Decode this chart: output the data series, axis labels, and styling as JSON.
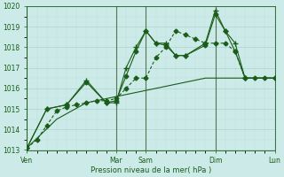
{
  "title": "Pression niveau de la mer( hPa )",
  "bg_color": "#cceae7",
  "grid_color_major": "#aad4d0",
  "grid_color_minor": "#c0e0dc",
  "line_color": "#1a5c1a",
  "vline_color": "#557755",
  "ylim": [
    1013,
    1020
  ],
  "yticks": [
    1013,
    1014,
    1015,
    1016,
    1017,
    1018,
    1019,
    1020
  ],
  "xtick_labels": [
    "Ven",
    "Mar",
    "Sam",
    "Dim",
    "Lun"
  ],
  "xtick_positions": [
    0,
    9,
    12,
    19,
    25
  ],
  "xlim": [
    0,
    25
  ],
  "vlines": [
    0,
    9,
    12,
    19,
    25
  ],
  "series": [
    {
      "x": [
        0,
        1,
        2,
        3,
        4,
        5,
        6,
        7,
        8,
        9,
        10,
        11,
        12,
        13,
        14,
        15,
        16,
        17,
        18,
        19,
        20,
        21,
        22,
        23,
        24,
        25
      ],
      "y": [
        1013.1,
        1013.5,
        1014.2,
        1014.9,
        1015.1,
        1015.2,
        1015.3,
        1015.4,
        1015.4,
        1015.5,
        1016.0,
        1016.5,
        1016.5,
        1017.5,
        1018.0,
        1018.8,
        1018.6,
        1018.4,
        1018.2,
        1018.2,
        1018.2,
        1017.8,
        1016.5,
        1016.5,
        1016.5,
        1016.5
      ],
      "style": "dotted",
      "marker": "D",
      "markersize": 2.5,
      "markevery": [
        0,
        2,
        4,
        6,
        8,
        10,
        12,
        14,
        16,
        18,
        20,
        22,
        24,
        25
      ]
    },
    {
      "x": [
        0,
        2,
        4,
        6,
        8,
        9,
        10,
        11,
        12,
        13,
        14,
        15,
        16,
        18,
        19,
        20,
        21,
        22,
        25
      ],
      "y": [
        1013.1,
        1015.0,
        1015.2,
        1016.4,
        1015.3,
        1015.3,
        1017.0,
        1018.0,
        1018.8,
        1018.2,
        1018.2,
        1017.6,
        1017.6,
        1018.2,
        1019.8,
        1018.8,
        1018.2,
        1016.5,
        1016.5
      ],
      "style": "solid",
      "marker": "+",
      "markersize": 5,
      "markevery": null
    },
    {
      "x": [
        0,
        2,
        4,
        6,
        8,
        9,
        10,
        11,
        12,
        13,
        14,
        15,
        16,
        18,
        19,
        20,
        21,
        22,
        25
      ],
      "y": [
        1013.1,
        1015.0,
        1015.2,
        1016.3,
        1015.3,
        1015.4,
        1016.6,
        1017.8,
        1018.8,
        1018.2,
        1018.1,
        1017.6,
        1017.6,
        1018.1,
        1019.6,
        1018.8,
        1017.8,
        1016.5,
        1016.5
      ],
      "style": "solid",
      "marker": "D",
      "markersize": 2.5,
      "markevery": null
    },
    {
      "x": [
        0,
        3,
        6,
        9,
        12,
        15,
        18,
        21,
        25
      ],
      "y": [
        1013.1,
        1014.5,
        1015.3,
        1015.6,
        1015.9,
        1016.2,
        1016.5,
        1016.5,
        1016.5
      ],
      "style": "solid",
      "marker": null,
      "markersize": 0,
      "markevery": null
    }
  ]
}
